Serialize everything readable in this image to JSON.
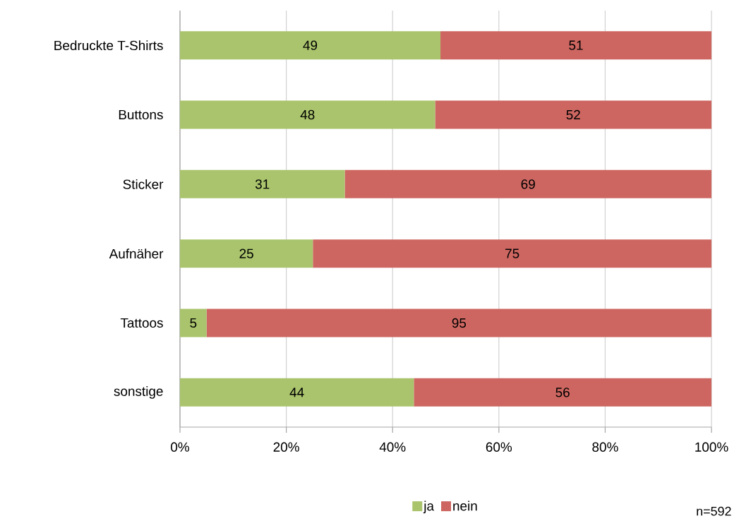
{
  "chart_data": {
    "type": "bar",
    "orientation": "horizontal",
    "stacked": true,
    "categories": [
      "Bedruckte T-Shirts",
      "Buttons",
      "Sticker",
      "Aufnäher",
      "Tattoos",
      "sonstige"
    ],
    "series": [
      {
        "name": "ja",
        "color": "#a9c46c",
        "values": [
          49,
          48,
          31,
          25,
          5,
          44
        ]
      },
      {
        "name": "nein",
        "color": "#cd6660",
        "values": [
          51,
          52,
          69,
          75,
          95,
          56
        ]
      }
    ],
    "xlim": [
      0,
      100
    ],
    "xticks": [
      {
        "value": 0,
        "label": "0%"
      },
      {
        "value": 20,
        "label": "20%"
      },
      {
        "value": 40,
        "label": "40%"
      },
      {
        "value": 60,
        "label": "60%"
      },
      {
        "value": 80,
        "label": "80%"
      },
      {
        "value": 100,
        "label": "100%"
      }
    ],
    "grid": "x",
    "legend": "bottom",
    "data_labels": true,
    "annotations": [
      "n=592"
    ]
  }
}
